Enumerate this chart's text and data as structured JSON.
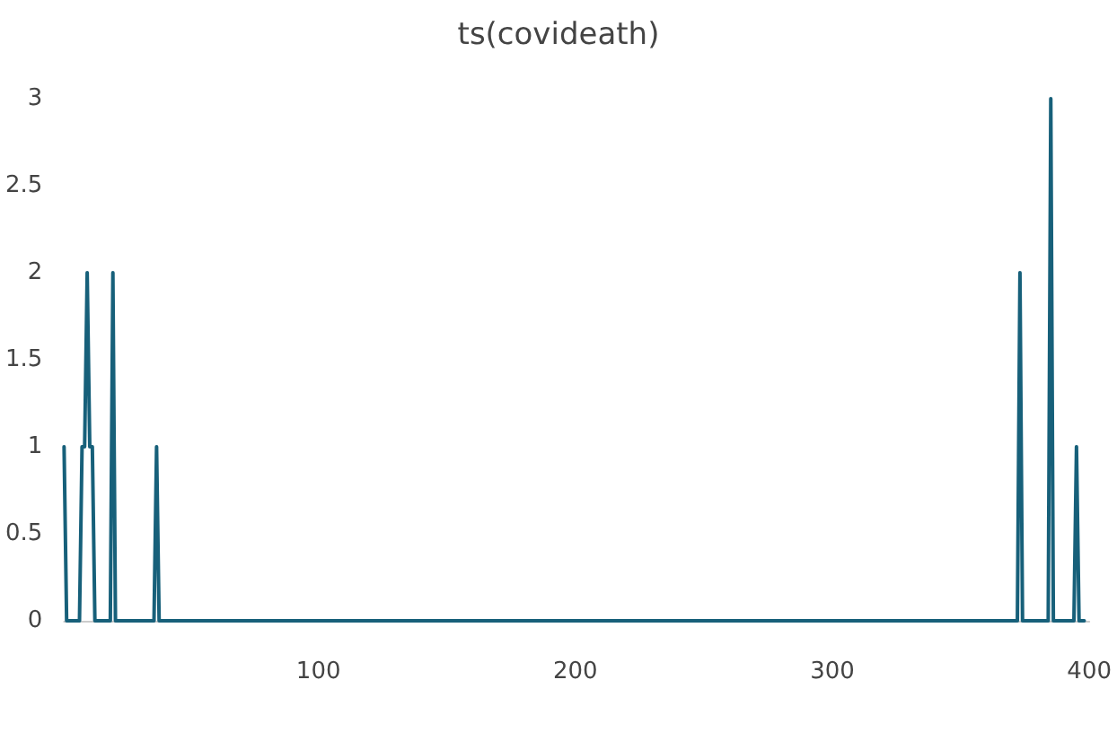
{
  "chart_data": {
    "type": "line",
    "title": "ts(covideath)",
    "x": [
      1,
      2,
      7,
      8,
      9,
      10,
      11,
      12,
      13,
      19,
      20,
      21,
      36,
      37,
      38,
      372,
      373,
      374,
      384,
      385,
      386,
      394,
      395,
      396,
      398
    ],
    "series": [
      {
        "color": "#17607a",
        "values": [
          1,
          0,
          0,
          1,
          1,
          2,
          1,
          1,
          0,
          0,
          2,
          0,
          0,
          1,
          0,
          0,
          2,
          0,
          0,
          3,
          0,
          0,
          1,
          0,
          0
        ]
      }
    ],
    "xlim": [
      1,
      400
    ],
    "xticks": [
      100,
      200,
      300,
      400
    ],
    "ylim": [
      0,
      3
    ],
    "yticks": [
      0,
      0.5,
      1,
      1.5,
      2,
      2.5,
      3
    ],
    "grid": false,
    "marker": "none",
    "line_style": "solid"
  }
}
